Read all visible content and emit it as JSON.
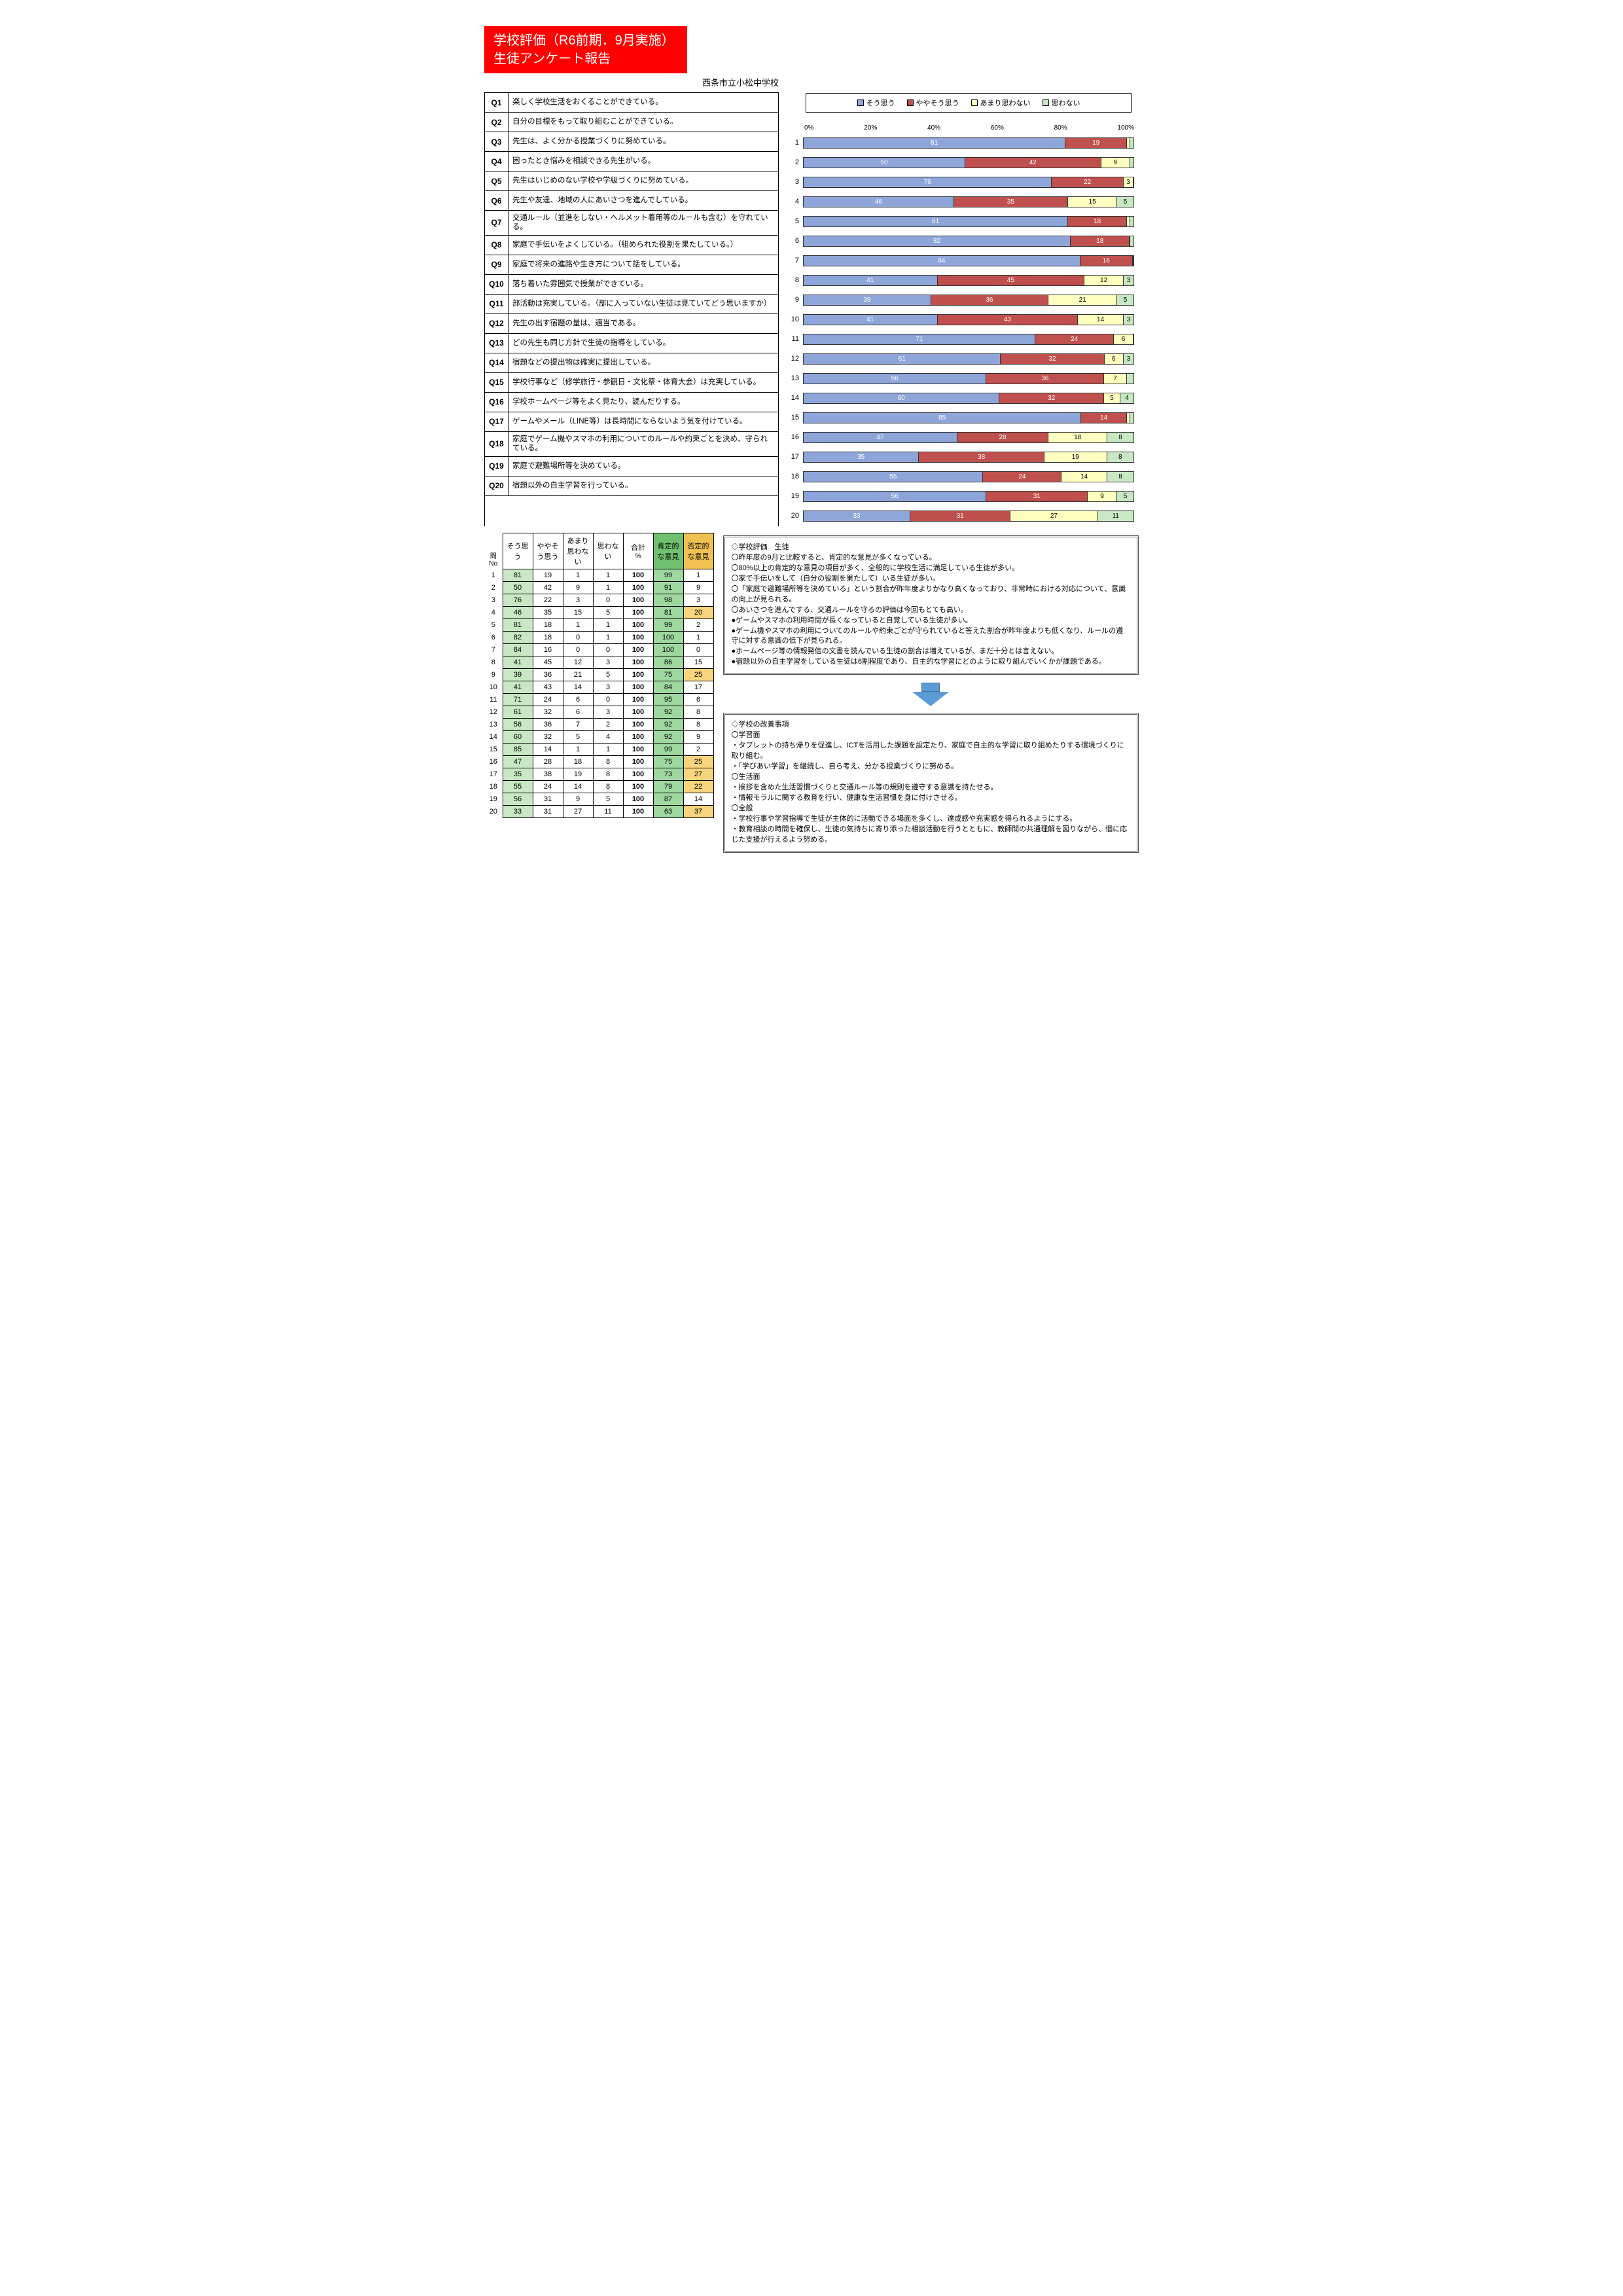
{
  "header": {
    "title_line1": "学校評価（R6前期．9月実施）",
    "title_line2": "生徒アンケート報告",
    "school": "西条市立小松中学校"
  },
  "legend": {
    "items": [
      "そう思う",
      "ややそう思う",
      "あまり思わない",
      "思わない"
    ]
  },
  "colors": {
    "c1": "#8ea5d9",
    "c2": "#c0504d",
    "c3": "#ffffc0",
    "c4": "#c7e8c3",
    "text_on_c1": "#ffffff",
    "text_on_c2": "#ffffff",
    "text_on_c3": "#000000",
    "text_on_c4": "#000000",
    "green_cell": "#9fd89f",
    "orange_cell": "#f8d57c",
    "green_header": "#70c070",
    "orange_header": "#f0c050"
  },
  "axis": {
    "ticks": [
      "0%",
      "20%",
      "40%",
      "60%",
      "80%",
      "100%"
    ]
  },
  "questions": [
    {
      "id": "Q1",
      "text": "楽しく学校生活をおくることができている。"
    },
    {
      "id": "Q2",
      "text": "自分の目標をもって取り組むことができている。"
    },
    {
      "id": "Q3",
      "text": "先生は、よく分かる授業づくりに努めている。"
    },
    {
      "id": "Q4",
      "text": "困ったとき悩みを相談できる先生がいる。"
    },
    {
      "id": "Q5",
      "text": "先生はいじめのない学校や学級づくりに努めている。"
    },
    {
      "id": "Q6",
      "text": "先生や友達、地域の人にあいさつを進んでしている。"
    },
    {
      "id": "Q7",
      "text": "交通ルール（並進をしない・ヘルメット着用等のルールも含む）を守れている。"
    },
    {
      "id": "Q8",
      "text": "家庭で手伝いをよくしている。（組められた役割を果たしている。）"
    },
    {
      "id": "Q9",
      "text": "家庭で将来の進路や生き方について話をしている。"
    },
    {
      "id": "Q10",
      "text": "落ち着いた雰囲気で授業ができている。"
    },
    {
      "id": "Q11",
      "text": "部活動は充実している。（部に入っていない生徒は見ていてどう思いますか）"
    },
    {
      "id": "Q12",
      "text": "先生の出す宿題の量は、適当である。"
    },
    {
      "id": "Q13",
      "text": "どの先生も同じ方針で生徒の指導をしている。"
    },
    {
      "id": "Q14",
      "text": "宿題などの提出物は確実に提出している。"
    },
    {
      "id": "Q15",
      "text": "学校行事など（修学旅行・参観日・文化祭・体育大会）は充実している。"
    },
    {
      "id": "Q16",
      "text": "学校ホームページ等をよく見たり、読んだりする。"
    },
    {
      "id": "Q17",
      "text": "ゲームやメール（LINE等）は長時間にならないよう気を付けている。"
    },
    {
      "id": "Q18",
      "text": "家庭でゲーム機やスマホの利用についてのルールや約束ごとを決め、守られている。"
    },
    {
      "id": "Q19",
      "text": "家庭で避難場所等を決めている。"
    },
    {
      "id": "Q20",
      "text": "宿題以外の自主学習を行っている。"
    }
  ],
  "data": [
    {
      "n": 1,
      "v": [
        81,
        19,
        1,
        1
      ],
      "sum": 100,
      "pos": 99,
      "neg": 1
    },
    {
      "n": 2,
      "v": [
        50,
        42,
        9,
        1
      ],
      "sum": 100,
      "pos": 91,
      "neg": 9
    },
    {
      "n": 3,
      "v": [
        76,
        22,
        3,
        0
      ],
      "sum": 100,
      "pos": 98,
      "neg": 3
    },
    {
      "n": 4,
      "v": [
        46,
        35,
        15,
        5
      ],
      "sum": 100,
      "pos": 81,
      "neg": 20
    },
    {
      "n": 5,
      "v": [
        81,
        18,
        1,
        1
      ],
      "sum": 100,
      "pos": 99,
      "neg": 2
    },
    {
      "n": 6,
      "v": [
        82,
        18,
        0,
        1
      ],
      "sum": 100,
      "pos": 100,
      "neg": 1
    },
    {
      "n": 7,
      "v": [
        84,
        16,
        0,
        0
      ],
      "sum": 100,
      "pos": 100,
      "neg": 0
    },
    {
      "n": 8,
      "v": [
        41,
        45,
        12,
        3
      ],
      "sum": 100,
      "pos": 86,
      "neg": 15
    },
    {
      "n": 9,
      "v": [
        39,
        36,
        21,
        5
      ],
      "sum": 100,
      "pos": 75,
      "neg": 25
    },
    {
      "n": 10,
      "v": [
        41,
        43,
        14,
        3
      ],
      "sum": 100,
      "pos": 84,
      "neg": 17
    },
    {
      "n": 11,
      "v": [
        71,
        24,
        6,
        0
      ],
      "sum": 100,
      "pos": 95,
      "neg": 6
    },
    {
      "n": 12,
      "v": [
        61,
        32,
        6,
        3
      ],
      "sum": 100,
      "pos": 92,
      "neg": 8
    },
    {
      "n": 13,
      "v": [
        56,
        36,
        7,
        2
      ],
      "sum": 100,
      "pos": 92,
      "neg": 8
    },
    {
      "n": 14,
      "v": [
        60,
        32,
        5,
        4
      ],
      "sum": 100,
      "pos": 92,
      "neg": 9
    },
    {
      "n": 15,
      "v": [
        85,
        14,
        1,
        1
      ],
      "sum": 100,
      "pos": 99,
      "neg": 2
    },
    {
      "n": 16,
      "v": [
        47,
        28,
        18,
        8
      ],
      "sum": 100,
      "pos": 75,
      "neg": 25
    },
    {
      "n": 17,
      "v": [
        35,
        38,
        19,
        8
      ],
      "sum": 100,
      "pos": 73,
      "neg": 27
    },
    {
      "n": 18,
      "v": [
        55,
        24,
        14,
        8
      ],
      "sum": 100,
      "pos": 79,
      "neg": 22
    },
    {
      "n": 19,
      "v": [
        56,
        31,
        9,
        5
      ],
      "sum": 100,
      "pos": 87,
      "neg": 14
    },
    {
      "n": 20,
      "v": [
        33,
        31,
        27,
        11
      ],
      "sum": 100,
      "pos": 63,
      "neg": 37
    }
  ],
  "table_headers": {
    "id": "問No",
    "c1": "そう思う",
    "c2": "ややそう思う",
    "c3": "あまり思わない",
    "c4": "思わない",
    "sum": "合計 %",
    "pos": "肯定的な意見",
    "neg": "否定的な意見"
  },
  "thresholds": {
    "neg_orange_min": 20
  },
  "comments": {
    "box1_title": "◇学校評価　生徒",
    "box1_lines": [
      "〇昨年度の9月と比較すると、肯定的な意見が多くなっている。",
      "〇80%以上の肯定的な意見の項目が多く、全般的に学校生活に満足している生徒が多い。",
      "〇家で手伝いをして（自分の役割を果たして）いる生徒が多い。",
      "〇「家庭で避難場所等を決めている」という割合が昨年度よりかなり高くなっており、非常時における対応について、意識の向上が見られる。",
      "〇あいさつを進んでする、交通ルールを守るの評価は今回もとても高い。",
      "●ゲームやスマホの利用時間が長くなっていると自覚している生徒が多い。",
      "●ゲーム機やスマホの利用についてのルールや約束ごとが守られていると答えた割合が昨年度よりも低くなり、ルールの遵守に対する意識の低下が見られる。",
      "●ホームページ等の情報発信の文書を読んでいる生徒の割合は増えているが、まだ十分とは言えない。",
      "●宿題以外の自主学習をしている生徒は6割程度であり、自主的な学習にどのように取り組んでいくかが課題である。"
    ],
    "box2_title": "◇学校の改善事項",
    "box2_lines": [
      "〇学習面",
      "・タブレットの持ち帰りを促進し、ICTを活用した課題を設定たり、家庭で自主的な学習に取り組めたりする環境づくりに取り組む。",
      "・「学びあい学習」を継続し、自ら考え、分かる授業づくりに努める。",
      "〇生活面",
      "・挨拶を含めた生活習慣づくりと交通ルール等の規則を遵守する意識を持たせる。",
      "・情報モラルに関する教育を行い、健康な生活習慣を身に付けさせる。",
      "〇全般",
      "・学校行事や学習指導で生徒が主体的に活動できる場面を多くし、達成感や充実感を得られるようにする。",
      "・教育相談の時間を確保し、生徒の気持ちに寄り添った相談活動を行うとともに、教師間の共通理解を図りながら、個に応じた支援が行えるよう努める。"
    ]
  }
}
